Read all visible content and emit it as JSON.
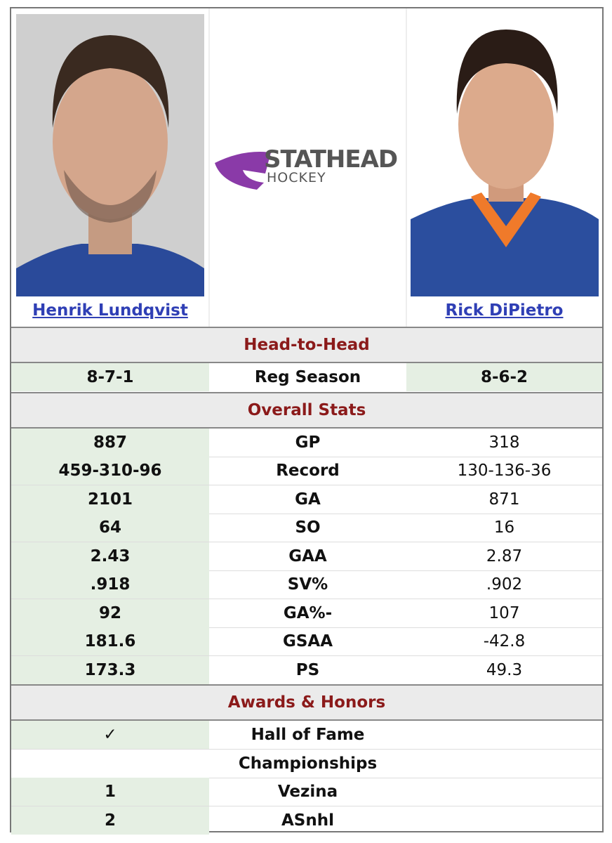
{
  "players": {
    "left": {
      "name": "Henrik Lundqvist"
    },
    "right": {
      "name": "Rick DiPietro"
    }
  },
  "logo": {
    "line1": "STATHEAD",
    "line2": "HOCKEY"
  },
  "sections": [
    {
      "title": "Head-to-Head",
      "rows": [
        {
          "left": "8-7-1",
          "label": "Reg Season",
          "right": "8-6-2",
          "highlight": [
            "left",
            "right"
          ]
        }
      ]
    },
    {
      "title": "Overall Stats",
      "rows": [
        {
          "left": "887",
          "label": "GP",
          "right": "318",
          "highlight": [
            "left"
          ]
        },
        {
          "left": "459-310-96",
          "label": "Record",
          "right": "130-136-36",
          "highlight": [
            "left"
          ]
        },
        {
          "left": "2101",
          "label": "GA",
          "right": "871",
          "highlight": [
            "left"
          ]
        },
        {
          "left": "64",
          "label": "SO",
          "right": "16",
          "highlight": [
            "left"
          ]
        },
        {
          "left": "2.43",
          "label": "GAA",
          "right": "2.87",
          "highlight": [
            "left"
          ]
        },
        {
          "left": ".918",
          "label": "SV%",
          "right": ".902",
          "highlight": [
            "left"
          ]
        },
        {
          "left": "92",
          "label": "GA%-",
          "right": "107",
          "highlight": [
            "left"
          ]
        },
        {
          "left": "181.6",
          "label": "GSAA",
          "right": "-42.8",
          "highlight": [
            "left"
          ]
        },
        {
          "left": "173.3",
          "label": "PS",
          "right": "49.3",
          "highlight": [
            "left"
          ]
        }
      ]
    },
    {
      "title": "Awards & Honors",
      "rows": [
        {
          "left": "✓",
          "label": "Hall of Fame",
          "right": null,
          "highlight": [
            "left"
          ]
        },
        {
          "left": null,
          "label": "Championships",
          "right": null,
          "highlight": []
        },
        {
          "left": "1",
          "label": "Vezina",
          "right": null,
          "highlight": [
            "left"
          ]
        },
        {
          "left": "2",
          "label": "ASnhl",
          "right": null,
          "highlight": [
            "left"
          ]
        }
      ]
    }
  ]
}
